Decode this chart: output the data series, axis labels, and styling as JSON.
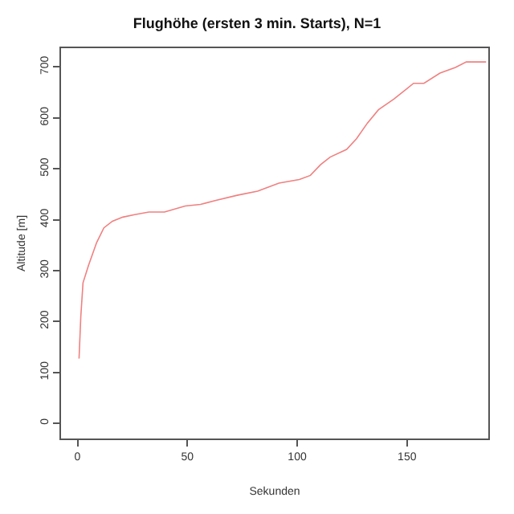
{
  "chart_data": {
    "type": "line",
    "title": "Flughöhe (ersten 3 min. Starts), N=1",
    "xlabel": "Sekunden",
    "ylabel": "Altitude [m]",
    "x": [
      0.7,
      1.5,
      2.5,
      5,
      8.7,
      12,
      15.9,
      20.6,
      26,
      32.5,
      39.6,
      49,
      56,
      63,
      72.7,
      82,
      91.7,
      101,
      106,
      110.6,
      115,
      122.5,
      127,
      132,
      137,
      144,
      153,
      157.7,
      165,
      172,
      177,
      186
    ],
    "series": [
      {
        "color": "#f08080",
        "values": [
          127,
          210,
          276,
          310,
          355,
          384,
          397,
          405,
          410,
          415,
          415,
          427,
          430,
          438,
          448,
          456,
          472,
          479,
          487,
          508,
          523,
          538,
          559,
          590,
          616,
          637,
          668,
          668,
          688,
          699,
          710,
          710
        ]
      }
    ],
    "xlim": [
      -7.5,
      187
    ],
    "xticks": [
      0,
      50,
      100,
      150
    ],
    "ylim": [
      -30,
      737
    ],
    "yticks": [
      0,
      100,
      200,
      300,
      400,
      500,
      600,
      700
    ],
    "line_style": "solid"
  }
}
